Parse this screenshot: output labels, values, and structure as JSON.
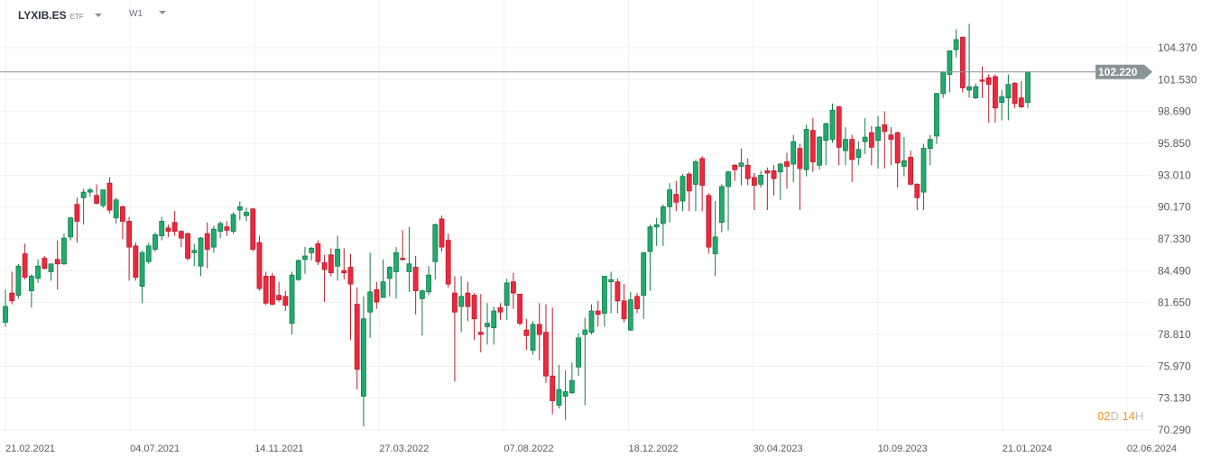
{
  "header": {
    "symbol": "LYXIB.ES",
    "symbol_type": "ETF",
    "timeframe": "W1"
  },
  "countdown": {
    "days": "02",
    "days_unit": "D",
    "hours": "14",
    "hours_unit": "H"
  },
  "colors": {
    "up": "#22ab6e",
    "up_border": "#137a4a",
    "down": "#f0283c",
    "down_border": "#b71c2c",
    "last_price_line": "#8a9090",
    "countdown": "#f7941d"
  },
  "chart_data": {
    "type": "candlestick",
    "title": "LYXIB.ES ETF W1",
    "last_price": "102.220",
    "last_price_value": 102.22,
    "ylim": [
      70.29,
      104.37
    ],
    "y_ticks": [
      "104.370",
      "101.530",
      "98.690",
      "95.850",
      "93.010",
      "90.170",
      "87.330",
      "84.490",
      "81.650",
      "78.810",
      "75.970",
      "73.130",
      "70.290"
    ],
    "x_ticks": [
      "21.02.2021",
      "04.07.2021",
      "14.11.2021",
      "27.03.2022",
      "07.08.2022",
      "18.12.2022",
      "30.04.2023",
      "10.09.2023",
      "21.01.2024",
      "02.06.2024"
    ],
    "grid": true,
    "ohlc_fields": [
      "open",
      "high",
      "low",
      "close"
    ],
    "candles": [
      [
        79.9,
        82.8,
        79.5,
        81.3
      ],
      [
        82.5,
        84.4,
        81.5,
        81.8
      ],
      [
        82.3,
        85.1,
        82.0,
        84.9
      ],
      [
        86.0,
        86.9,
        83.7,
        83.9
      ],
      [
        82.7,
        84.2,
        81.2,
        84.0
      ],
      [
        83.8,
        85.5,
        83.4,
        84.9
      ],
      [
        85.6,
        85.8,
        84.6,
        84.7
      ],
      [
        84.4,
        85.1,
        83.6,
        85.1
      ],
      [
        85.5,
        87.2,
        82.8,
        85.1
      ],
      [
        85.1,
        87.8,
        85.0,
        87.4
      ],
      [
        87.5,
        89.3,
        87.2,
        89.2
      ],
      [
        90.4,
        91.0,
        87.0,
        88.9
      ],
      [
        91.0,
        91.8,
        88.6,
        91.5
      ],
      [
        91.5,
        91.9,
        91.1,
        91.7
      ],
      [
        91.2,
        92.2,
        90.4,
        90.5
      ],
      [
        90.3,
        91.7,
        90.1,
        91.7
      ],
      [
        92.3,
        92.8,
        89.6,
        89.9
      ],
      [
        89.2,
        91.0,
        88.7,
        90.8
      ],
      [
        90.2,
        90.3,
        87.3,
        88.9
      ],
      [
        88.9,
        89.3,
        83.6,
        86.6
      ],
      [
        86.7,
        87.0,
        83.6,
        83.9
      ],
      [
        83.1,
        86.3,
        81.6,
        86.1
      ],
      [
        85.3,
        87.0,
        85.1,
        86.7
      ],
      [
        86.4,
        87.9,
        86.2,
        87.7
      ],
      [
        87.6,
        89.3,
        87.2,
        88.9
      ],
      [
        88.3,
        88.6,
        87.5,
        88.0
      ],
      [
        88.8,
        89.8,
        87.6,
        88.0
      ],
      [
        88.0,
        88.1,
        86.6,
        87.4
      ],
      [
        87.8,
        87.9,
        85.4,
        85.6
      ],
      [
        86.1,
        86.9,
        84.9,
        86.3
      ],
      [
        84.9,
        87.5,
        84.0,
        87.4
      ],
      [
        87.8,
        88.8,
        84.7,
        86.4
      ],
      [
        86.6,
        88.5,
        86.1,
        88.2
      ],
      [
        88.0,
        88.9,
        87.4,
        88.7
      ],
      [
        88.4,
        88.9,
        87.6,
        88.1
      ],
      [
        88.0,
        89.7,
        87.8,
        89.5
      ],
      [
        89.9,
        90.7,
        89.0,
        90.2
      ],
      [
        89.4,
        90.1,
        88.9,
        89.7
      ],
      [
        90.0,
        90.1,
        86.2,
        86.4
      ],
      [
        87.0,
        87.6,
        82.7,
        82.9
      ],
      [
        84.0,
        84.4,
        81.4,
        81.6
      ],
      [
        84.0,
        84.3,
        81.4,
        81.5
      ],
      [
        82.3,
        83.5,
        81.7,
        81.9
      ],
      [
        82.2,
        82.7,
        80.9,
        81.4
      ],
      [
        79.8,
        84.4,
        78.8,
        84.1
      ],
      [
        83.7,
        85.5,
        83.6,
        85.4
      ],
      [
        85.5,
        86.6,
        84.2,
        85.8
      ],
      [
        86.1,
        86.6,
        85.4,
        86.5
      ],
      [
        86.9,
        87.2,
        85.0,
        85.3
      ],
      [
        85.2,
        85.9,
        81.7,
        84.6
      ],
      [
        85.9,
        86.5,
        84.0,
        84.3
      ],
      [
        84.9,
        87.6,
        83.6,
        86.4
      ],
      [
        84.5,
        86.5,
        83.7,
        84.3
      ],
      [
        84.8,
        86.0,
        78.3,
        83.3
      ],
      [
        81.5,
        83.0,
        73.9,
        75.7
      ],
      [
        73.3,
        82.2,
        70.6,
        80.2
      ],
      [
        80.8,
        86.1,
        78.5,
        82.6
      ],
      [
        82.8,
        83.5,
        81.1,
        81.7
      ],
      [
        82.1,
        85.5,
        82.1,
        83.5
      ],
      [
        83.8,
        84.9,
        82.2,
        84.8
      ],
      [
        84.4,
        86.6,
        82.0,
        86.1
      ],
      [
        85.6,
        88.1,
        85.4,
        85.5
      ],
      [
        84.4,
        88.4,
        82.6,
        85.1
      ],
      [
        84.8,
        85.8,
        80.6,
        82.7
      ],
      [
        82.0,
        82.8,
        78.7,
        82.7
      ],
      [
        82.6,
        84.9,
        82.3,
        84.1
      ],
      [
        85.3,
        88.7,
        83.7,
        88.6
      ],
      [
        89.1,
        89.4,
        86.2,
        86.6
      ],
      [
        87.2,
        87.8,
        83.0,
        83.3
      ],
      [
        82.5,
        84.0,
        74.6,
        80.8
      ],
      [
        81.3,
        84.0,
        79.0,
        82.2
      ],
      [
        82.5,
        83.5,
        80.0,
        81.3
      ],
      [
        82.3,
        82.5,
        78.3,
        80.2
      ],
      [
        79.0,
        82.4,
        77.2,
        78.8
      ],
      [
        79.5,
        81.6,
        77.9,
        79.8
      ],
      [
        79.4,
        81.3,
        77.9,
        80.9
      ],
      [
        81.2,
        81.6,
        80.1,
        80.8
      ],
      [
        81.4,
        83.8,
        80.1,
        83.4
      ],
      [
        83.5,
        84.3,
        81.1,
        82.5
      ],
      [
        82.4,
        82.4,
        79.6,
        79.8
      ],
      [
        79.2,
        80.2,
        77.4,
        78.7
      ],
      [
        77.4,
        80.0,
        77.0,
        79.7
      ],
      [
        79.7,
        81.6,
        76.5,
        78.8
      ],
      [
        79.0,
        81.5,
        74.5,
        75.1
      ],
      [
        75.1,
        81.2,
        71.7,
        72.9
      ],
      [
        72.5,
        76.1,
        72.2,
        73.9
      ],
      [
        73.3,
        75.6,
        71.2,
        73.7
      ],
      [
        73.6,
        76.3,
        73.5,
        74.7
      ],
      [
        75.9,
        78.9,
        75.1,
        78.5
      ],
      [
        78.8,
        80.3,
        72.5,
        79.2
      ],
      [
        79.0,
        81.5,
        78.8,
        80.9
      ],
      [
        80.9,
        81.8,
        79.5,
        80.6
      ],
      [
        80.7,
        84.0,
        79.5,
        84.0
      ],
      [
        83.5,
        84.4,
        80.7,
        83.7
      ],
      [
        83.5,
        83.8,
        80.7,
        81.8
      ],
      [
        81.8,
        83.3,
        79.9,
        80.2
      ],
      [
        79.2,
        82.6,
        79.1,
        81.9
      ],
      [
        82.2,
        82.5,
        80.7,
        81.1
      ],
      [
        82.3,
        86.1,
        80.2,
        86.1
      ],
      [
        86.2,
        88.6,
        82.7,
        88.4
      ],
      [
        88.4,
        89.2,
        86.7,
        88.6
      ],
      [
        88.7,
        90.4,
        86.7,
        90.2
      ],
      [
        90.2,
        92.3,
        88.8,
        91.7
      ],
      [
        91.3,
        92.5,
        89.8,
        90.6
      ],
      [
        90.7,
        93.1,
        89.8,
        92.9
      ],
      [
        93.1,
        93.3,
        89.8,
        91.6
      ],
      [
        92.2,
        94.4,
        89.8,
        94.2
      ],
      [
        94.5,
        94.7,
        89.8,
        92.1
      ],
      [
        91.2,
        91.4,
        86.0,
        86.6
      ],
      [
        86.0,
        90.7,
        84.0,
        87.5
      ],
      [
        88.8,
        92.2,
        87.9,
        92.0
      ],
      [
        92.0,
        93.4,
        88.1,
        93.3
      ],
      [
        93.9,
        94.0,
        92.5,
        93.5
      ],
      [
        93.8,
        95.4,
        92.1,
        94.1
      ],
      [
        93.9,
        94.5,
        92.1,
        92.7
      ],
      [
        92.8,
        93.2,
        89.9,
        92.1
      ],
      [
        92.2,
        93.4,
        91.9,
        93.0
      ],
      [
        93.4,
        93.7,
        89.9,
        93.2
      ],
      [
        93.4,
        93.9,
        91.2,
        92.7
      ],
      [
        93.3,
        94.1,
        90.8,
        94.0
      ],
      [
        94.2,
        95.0,
        91.8,
        93.8
      ],
      [
        94.0,
        96.6,
        92.4,
        96.0
      ],
      [
        95.4,
        95.8,
        89.9,
        93.6
      ],
      [
        93.5,
        97.5,
        92.9,
        97.1
      ],
      [
        97.0,
        98.1,
        93.3,
        94.2
      ],
      [
        93.9,
        96.5,
        93.5,
        96.4
      ],
      [
        96.1,
        97.7,
        93.9,
        97.6
      ],
      [
        96.2,
        99.4,
        95.9,
        98.8
      ],
      [
        99.1,
        99.2,
        93.9,
        95.5
      ],
      [
        95.2,
        97.3,
        93.9,
        96.2
      ],
      [
        96.2,
        96.6,
        92.4,
        94.4
      ],
      [
        94.6,
        96.0,
        93.9,
        95.3
      ],
      [
        96.0,
        98.1,
        94.9,
        96.4
      ],
      [
        96.8,
        97.4,
        93.9,
        95.5
      ],
      [
        96.1,
        98.3,
        93.6,
        97.3
      ],
      [
        97.5,
        98.7,
        93.6,
        96.9
      ],
      [
        96.6,
        97.3,
        93.9,
        96.2
      ],
      [
        96.8,
        96.9,
        91.9,
        94.1
      ],
      [
        93.8,
        96.4,
        92.9,
        94.3
      ],
      [
        94.6,
        95.2,
        92.1,
        92.2
      ],
      [
        92.2,
        92.3,
        89.9,
        91.0
      ],
      [
        91.5,
        95.8,
        89.9,
        95.4
      ],
      [
        95.4,
        96.6,
        93.9,
        96.2
      ],
      [
        96.5,
        100.3,
        95.8,
        100.3
      ],
      [
        100.3,
        102.3,
        99.9,
        102.2
      ],
      [
        102.0,
        104.1,
        100.4,
        104.1
      ],
      [
        104.2,
        106.0,
        103.5,
        105.1
      ],
      [
        105.3,
        105.4,
        100.4,
        100.8
      ],
      [
        100.6,
        106.5,
        99.9,
        100.9
      ],
      [
        99.9,
        101.2,
        99.8,
        100.9
      ],
      [
        101.5,
        102.7,
        99.9,
        101.4
      ],
      [
        101.7,
        102.0,
        97.7,
        101.1
      ],
      [
        101.8,
        102.0,
        97.7,
        99.0
      ],
      [
        99.5,
        100.6,
        97.9,
        100.0
      ],
      [
        99.9,
        102.0,
        97.9,
        101.1
      ],
      [
        101.2,
        101.3,
        99.0,
        99.4
      ],
      [
        99.9,
        101.4,
        99.0,
        99.1
      ],
      [
        99.5,
        102.3,
        99.0,
        102.2
      ]
    ]
  }
}
